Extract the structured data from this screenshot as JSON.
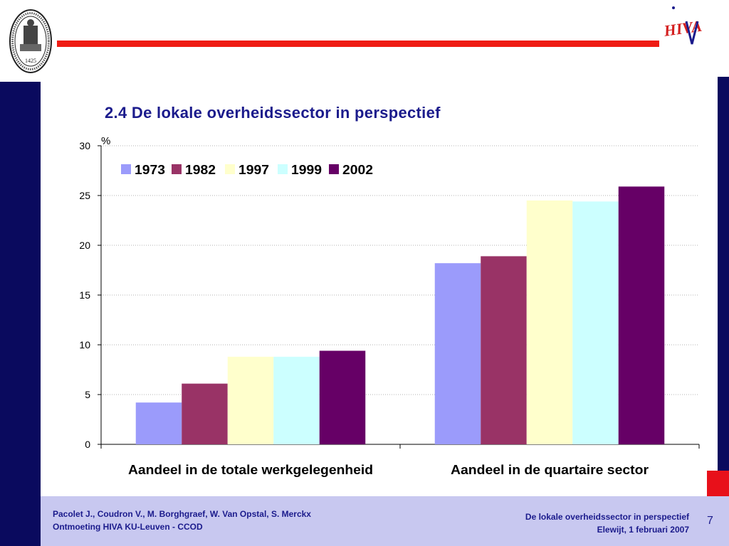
{
  "slide": {
    "title": "2.4 De lokale overheidssector in perspectief",
    "page_number": "7"
  },
  "footer": {
    "left_line1": "Pacolet J., Coudron V., M. Borghgraef, W. Van Opstal, S. Merckx",
    "left_line2": "Ontmoeting HIVA KU-Leuven - CCOD",
    "right_line1": "De lokale overheidssector in perspectief",
    "right_line2": "Elewijt, 1 februari 2007"
  },
  "logos": {
    "seal_year": "1425",
    "hiva_text": "HIVA"
  },
  "colors": {
    "navy": "#0a0a5e",
    "red": "#ef1c14",
    "title_blue": "#1b1b8c",
    "footer_band": "#c8c8f0"
  },
  "chart_data": {
    "type": "bar",
    "unit_label": "%",
    "categories": [
      "Aandeel in de totale werkgelegenheid",
      "Aandeel in de quartaire sector"
    ],
    "series": [
      {
        "name": "1973",
        "color": "#9b9bfb",
        "values": [
          4.2,
          18.2
        ]
      },
      {
        "name": "1982",
        "color": "#993366",
        "values": [
          6.1,
          18.9
        ]
      },
      {
        "name": "1997",
        "color": "#ffffcc",
        "values": [
          8.8,
          24.5
        ]
      },
      {
        "name": "1999",
        "color": "#ccffff",
        "values": [
          8.8,
          24.4
        ]
      },
      {
        "name": "2002",
        "color": "#660066",
        "values": [
          9.4,
          25.9
        ]
      }
    ],
    "ylim": [
      0,
      30
    ],
    "yticks": [
      0,
      5,
      10,
      15,
      20,
      25,
      30
    ],
    "grid": "horizontal dotted",
    "legend": "top-left inside plot"
  }
}
